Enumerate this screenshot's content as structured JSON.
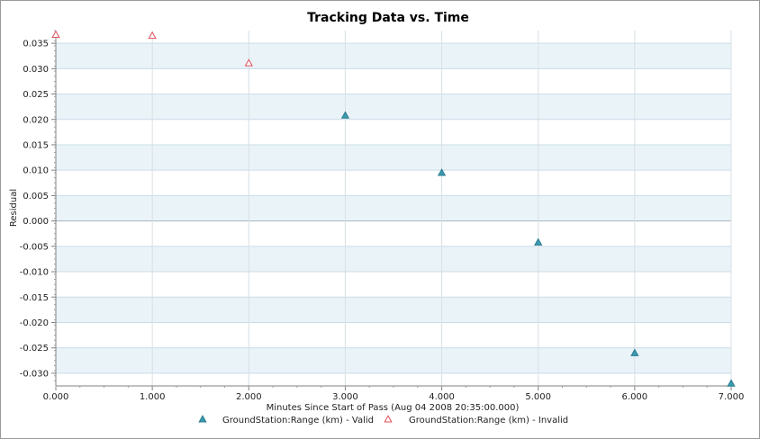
{
  "chart_data": {
    "type": "scatter",
    "title": "Tracking Data vs. Time",
    "xlabel": "Minutes Since Start of Pass (Aug 04 2008 20:35:00.000)",
    "ylabel": "Residual",
    "xlim": [
      0,
      7
    ],
    "ylim": [
      -0.0325,
      0.0375
    ],
    "x_ticks": [
      0,
      1,
      2,
      3,
      4,
      5,
      6,
      7
    ],
    "x_tick_labels": [
      "0.000",
      "1.000",
      "2.000",
      "3.000",
      "4.000",
      "5.000",
      "6.000",
      "7.000"
    ],
    "y_ticks": [
      0.035,
      0.03,
      0.025,
      0.02,
      0.015,
      0.01,
      0.005,
      0.0,
      -0.005,
      -0.01,
      -0.015,
      -0.02,
      -0.025,
      -0.03
    ],
    "y_tick_labels": [
      "0.035",
      "0.030",
      "0.025",
      "0.020",
      "0.015",
      "0.010",
      "0.005",
      "0.000",
      "-0.005",
      "-0.010",
      "-0.015",
      "-0.020",
      "-0.025",
      "-0.030"
    ],
    "grid": true,
    "legend_position": "bottom-center",
    "series": [
      {
        "name": "GroundStation:Range (km) - Valid",
        "marker": "filled-triangle",
        "color": "#3a9bb0",
        "x": [
          3,
          4,
          5,
          6,
          7
        ],
        "y": [
          0.0208,
          0.0095,
          -0.0042,
          -0.026,
          -0.032
        ]
      },
      {
        "name": "GroundStation:Range (km) - Invalid",
        "marker": "hollow-triangle",
        "color": "#e0505a",
        "x": [
          0,
          1,
          2
        ],
        "y": [
          0.0367,
          0.0365,
          0.0311
        ]
      }
    ]
  }
}
